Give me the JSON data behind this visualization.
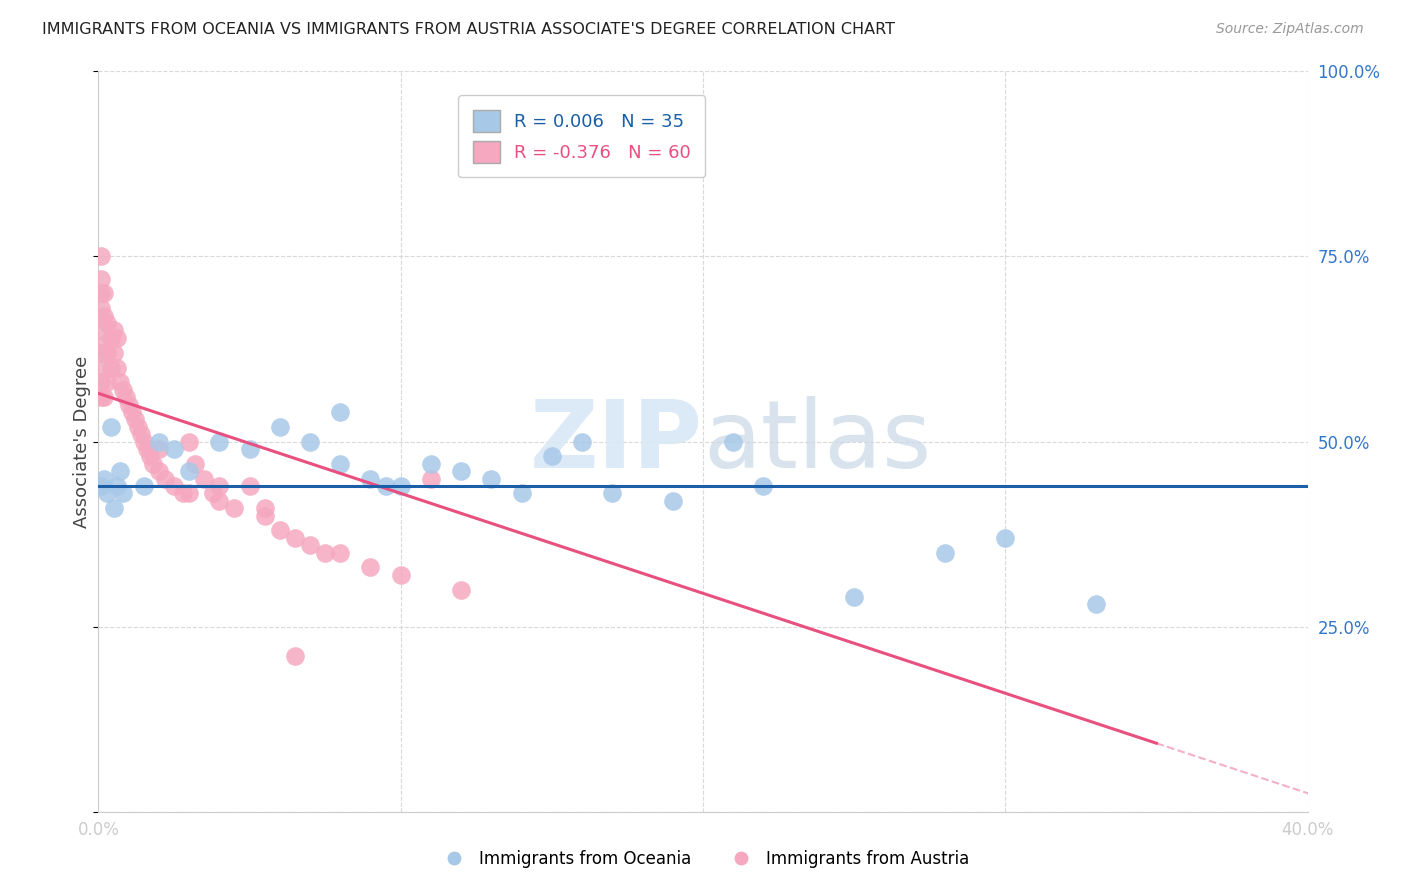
{
  "title": "IMMIGRANTS FROM OCEANIA VS IMMIGRANTS FROM AUSTRIA ASSOCIATE'S DEGREE CORRELATION CHART",
  "source": "Source: ZipAtlas.com",
  "ylabel": "Associate's Degree",
  "r_oceania": 0.006,
  "n_oceania": 35,
  "r_austria": -0.376,
  "n_austria": 60,
  "color_oceania": "#a8c8e8",
  "color_austria": "#f5a8c0",
  "line_color_oceania": "#1a5fa8",
  "line_color_austria": "#e85080",
  "watermark_color": "#d8e8f5",
  "grid_color": "#d5d5d5",
  "background_color": "#ffffff",
  "oceania_x": [
    0.001,
    0.002,
    0.003,
    0.004,
    0.005,
    0.006,
    0.007,
    0.008,
    0.015,
    0.02,
    0.025,
    0.03,
    0.04,
    0.05,
    0.06,
    0.07,
    0.08,
    0.09,
    0.1,
    0.11,
    0.12,
    0.13,
    0.14,
    0.15,
    0.17,
    0.19,
    0.22,
    0.25,
    0.28,
    0.3,
    0.33,
    0.08,
    0.16,
    0.21,
    0.095
  ],
  "oceania_y": [
    0.44,
    0.45,
    0.43,
    0.52,
    0.41,
    0.44,
    0.46,
    0.43,
    0.44,
    0.5,
    0.49,
    0.46,
    0.5,
    0.49,
    0.52,
    0.5,
    0.47,
    0.45,
    0.44,
    0.47,
    0.46,
    0.45,
    0.43,
    0.48,
    0.43,
    0.42,
    0.44,
    0.29,
    0.35,
    0.37,
    0.28,
    0.54,
    0.5,
    0.5,
    0.44
  ],
  "austria_x": [
    0.001,
    0.001,
    0.001,
    0.001,
    0.001,
    0.001,
    0.001,
    0.001,
    0.002,
    0.002,
    0.002,
    0.002,
    0.002,
    0.003,
    0.003,
    0.003,
    0.004,
    0.004,
    0.005,
    0.005,
    0.006,
    0.006,
    0.007,
    0.008,
    0.009,
    0.01,
    0.011,
    0.012,
    0.013,
    0.014,
    0.015,
    0.016,
    0.017,
    0.018,
    0.02,
    0.022,
    0.025,
    0.028,
    0.03,
    0.032,
    0.035,
    0.038,
    0.04,
    0.045,
    0.05,
    0.055,
    0.06,
    0.065,
    0.07,
    0.075,
    0.08,
    0.09,
    0.1,
    0.11,
    0.12,
    0.02,
    0.03,
    0.04,
    0.055,
    0.065
  ],
  "austria_y": [
    0.56,
    0.58,
    0.62,
    0.65,
    0.68,
    0.7,
    0.72,
    0.75,
    0.56,
    0.6,
    0.63,
    0.67,
    0.7,
    0.58,
    0.62,
    0.66,
    0.6,
    0.64,
    0.62,
    0.65,
    0.6,
    0.64,
    0.58,
    0.57,
    0.56,
    0.55,
    0.54,
    0.53,
    0.52,
    0.51,
    0.5,
    0.49,
    0.48,
    0.47,
    0.46,
    0.45,
    0.44,
    0.43,
    0.5,
    0.47,
    0.45,
    0.43,
    0.42,
    0.41,
    0.44,
    0.4,
    0.38,
    0.37,
    0.36,
    0.35,
    0.35,
    0.33,
    0.32,
    0.45,
    0.3,
    0.49,
    0.43,
    0.44,
    0.41,
    0.21
  ],
  "xlim": [
    0.0,
    0.4
  ],
  "ylim": [
    0.0,
    1.0
  ],
  "xticks": [
    0.0,
    0.1,
    0.2,
    0.3,
    0.4
  ],
  "yticks_right": [
    0.25,
    0.5,
    0.75,
    1.0
  ],
  "ytick_labels_right": [
    "25.0%",
    "50.0%",
    "75.0%",
    "100.0%"
  ],
  "xtick_labels": [
    "0.0%",
    "",
    "",
    "",
    "40.0%"
  ],
  "oceania_line_y_intercept": 0.44,
  "oceania_line_slope": 0.0,
  "austria_line_y_intercept": 0.565,
  "austria_line_slope": -1.35
}
